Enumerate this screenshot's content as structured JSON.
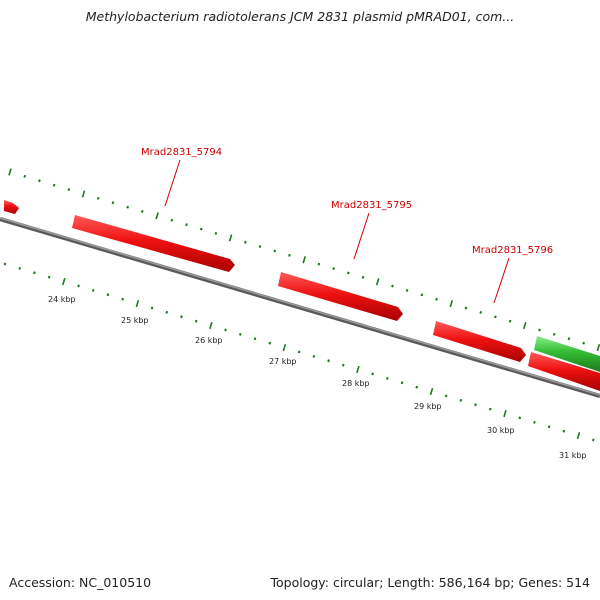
{
  "title": "Methylobacterium radiotolerans JCM 2831 plasmid pMRAD01, com...",
  "accession_text": "Accession: NC_010510",
  "summary_text": "Topology: circular; Length: 586,164 bp; Genes: 514",
  "scale": {
    "unit": "kbp",
    "ticks": [
      {
        "label": "24 kbp"
      },
      {
        "label": "25 kbp"
      },
      {
        "label": "26 kbp"
      },
      {
        "label": "27 kbp"
      },
      {
        "label": "28 kbp"
      },
      {
        "label": "29 kbp"
      },
      {
        "label": "30 kbp"
      },
      {
        "label": "31 kbp"
      }
    ]
  },
  "genes": [
    {
      "label": "Mrad2831_5794",
      "strand": "+",
      "color": "#ee1111"
    },
    {
      "label": "Mrad2831_5795",
      "strand": "+",
      "color": "#ee1111"
    },
    {
      "label": "Mrad2831_5796",
      "strand": "+",
      "color": "#ee1111"
    }
  ],
  "colors": {
    "forward_gene": "#ee1111",
    "reverse_gene": "#33bb33",
    "backbone": "#808080",
    "tick_marks": "#1a7a1a",
    "label_text": "#cc0000"
  }
}
